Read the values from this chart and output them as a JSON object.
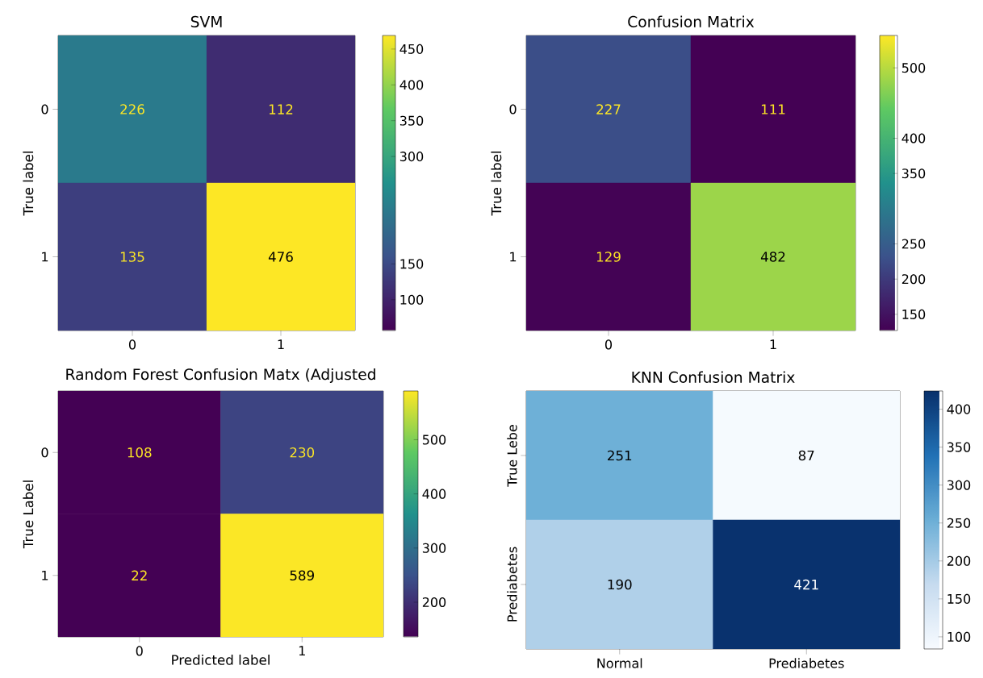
{
  "chart_data": [
    {
      "type": "heatmap",
      "title": "SVM",
      "ylabel": "True label",
      "categories": [
        "0",
        "1"
      ],
      "y_categories": [
        "0",
        "1"
      ],
      "cells": [
        [
          226,
          112
        ],
        [
          135,
          476
        ]
      ],
      "data_labels": true,
      "clim": [
        57,
        469
      ],
      "cticks": [
        100,
        150,
        300,
        350,
        400,
        450
      ],
      "colors": [
        "#440154",
        "#3b528b",
        "#21918c",
        "#5ec962",
        "#fde725"
      ]
    },
    {
      "type": "heatmap",
      "title": "Confusion Matrix",
      "ylabel": "True label",
      "categories": [
        "0",
        "1"
      ],
      "y_categories": [
        "0",
        "1"
      ],
      "cells": [
        [
          227,
          111
        ],
        [
          129,
          482
        ]
      ],
      "data_labels": true,
      "clim": [
        127,
        546
      ],
      "cticks": [
        150,
        200,
        250,
        350,
        400,
        500
      ],
      "colors": [
        "#440154",
        "#3b528b",
        "#21918c",
        "#5ec962",
        "#fde725"
      ]
    },
    {
      "type": "heatmap",
      "title": "Random Forest Confusion Matx (Adjusted",
      "xlabel": "Predicted label",
      "ylabel": "True Label",
      "categories": [
        "0",
        "1"
      ],
      "y_categories": [
        "0",
        "1"
      ],
      "cells": [
        [
          108,
          230
        ],
        [
          22,
          589
        ]
      ],
      "data_labels": true,
      "clim": [
        136,
        590
      ],
      "cticks": [
        200,
        300,
        400,
        500
      ],
      "colors": [
        "#440154",
        "#3b528b",
        "#21918c",
        "#5ec962",
        "#fde725"
      ]
    },
    {
      "type": "heatmap",
      "title": "KNN Confusion Matrix",
      "categories": [
        "Normal",
        "Prediabetes"
      ],
      "y_categories": [
        "True Lebe",
        "Prediabetes"
      ],
      "cells": [
        [
          251,
          87
        ],
        [
          190,
          421
        ]
      ],
      "data_labels": true,
      "clim": [
        84,
        424
      ],
      "cticks": [
        100,
        150,
        200,
        250,
        300,
        350,
        400
      ],
      "colors": [
        "#f7fbff",
        "#c6dbef",
        "#6baed6",
        "#2171b5",
        "#08306b"
      ]
    }
  ]
}
